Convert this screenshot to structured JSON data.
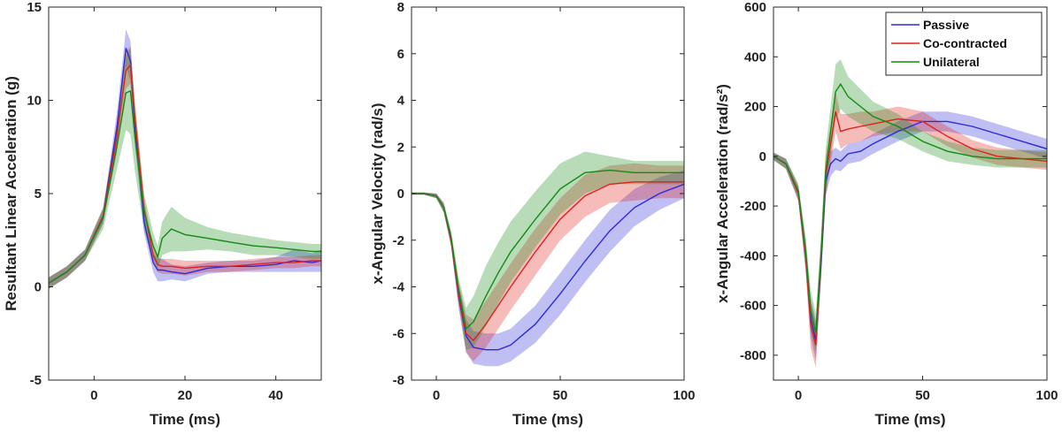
{
  "figure": {
    "legend": {
      "placement": "top-right of third panel",
      "entries": [
        {
          "label": "Passive",
          "color": "#2b2bd9"
        },
        {
          "label": "Co-contracted",
          "color": "#e0201c"
        },
        {
          "label": "Unilateral",
          "color": "#138a13"
        }
      ]
    }
  },
  "chart_data": [
    {
      "type": "line",
      "title": "",
      "xlabel": "Time (ms)",
      "ylabel": "Resultant Linear Acceleration (g)",
      "xlim": [
        -10,
        50
      ],
      "ylim": [
        -5,
        15
      ],
      "xticks": [
        0,
        20,
        40
      ],
      "yticks": [
        -5,
        0,
        5,
        10,
        15
      ],
      "grid": false,
      "series": [
        {
          "name": "Passive",
          "color": "#2b2bd9",
          "x": [
            -10,
            -6,
            -2,
            2,
            5,
            7,
            8,
            9,
            11,
            13,
            14,
            15,
            17,
            20,
            25,
            30,
            35,
            40,
            44,
            48,
            50
          ],
          "y": [
            0.2,
            0.8,
            1.7,
            3.8,
            8.5,
            12.8,
            12.1,
            8.5,
            3.5,
            1.3,
            0.9,
            0.9,
            0.8,
            0.7,
            1.0,
            1.1,
            1.1,
            1.2,
            1.4,
            1.3,
            1.4
          ],
          "band": [
            0.3,
            0.3,
            0.3,
            0.4,
            0.8,
            1.0,
            1.1,
            0.9,
            0.6,
            0.5,
            0.6,
            0.6,
            0.4,
            0.4,
            0.3,
            0.3,
            0.3,
            0.4,
            0.6,
            0.5,
            0.6
          ]
        },
        {
          "name": "Co-contracted",
          "color": "#e0201c",
          "x": [
            -10,
            -6,
            -2,
            2,
            5,
            7,
            8,
            9,
            11,
            13,
            14,
            15,
            17,
            20,
            25,
            30,
            35,
            40,
            44,
            48,
            50
          ],
          "y": [
            0.2,
            0.8,
            1.7,
            3.8,
            8.0,
            11.6,
            11.9,
            9.0,
            4.2,
            1.7,
            1.2,
            1.1,
            1.1,
            1.0,
            1.1,
            1.1,
            1.2,
            1.3,
            1.3,
            1.4,
            1.4
          ],
          "band": [
            0.3,
            0.3,
            0.3,
            0.4,
            0.8,
            1.0,
            1.0,
            0.9,
            0.6,
            0.4,
            0.4,
            0.4,
            0.4,
            0.4,
            0.3,
            0.3,
            0.3,
            0.3,
            0.3,
            0.3,
            0.3
          ]
        },
        {
          "name": "Unilateral",
          "color": "#138a13",
          "x": [
            -10,
            -6,
            -2,
            2,
            5,
            7,
            8,
            9,
            11,
            13,
            14,
            15,
            17,
            20,
            25,
            30,
            35,
            40,
            44,
            48,
            50
          ],
          "y": [
            0.2,
            0.8,
            1.7,
            3.7,
            7.5,
            10.4,
            10.5,
            8.0,
            4.0,
            2.2,
            1.6,
            2.6,
            3.1,
            2.8,
            2.6,
            2.4,
            2.2,
            2.1,
            2.0,
            1.9,
            1.9
          ],
          "band": [
            0.3,
            0.3,
            0.3,
            0.6,
            1.2,
            2.0,
            2.3,
            1.8,
            1.0,
            0.7,
            0.6,
            0.9,
            1.2,
            0.9,
            0.6,
            0.5,
            0.5,
            0.4,
            0.4,
            0.4,
            0.4
          ]
        }
      ]
    },
    {
      "type": "line",
      "title": "",
      "xlabel": "Time (ms)",
      "ylabel": "x-Angular Velocity (rad/s)",
      "xlim": [
        -10,
        100
      ],
      "ylim": [
        -8,
        8
      ],
      "xticks": [
        0,
        50,
        100
      ],
      "yticks": [
        -8,
        -6,
        -4,
        -2,
        0,
        2,
        4,
        6,
        8
      ],
      "grid": false,
      "series": [
        {
          "name": "Passive",
          "color": "#2b2bd9",
          "x": [
            -10,
            -5,
            0,
            3,
            6,
            9,
            12,
            15,
            20,
            25,
            30,
            40,
            50,
            60,
            70,
            80,
            90,
            100
          ],
          "y": [
            0,
            0,
            -0.1,
            -0.6,
            -2.0,
            -4.4,
            -6.1,
            -6.6,
            -6.7,
            -6.7,
            -6.5,
            -5.6,
            -4.3,
            -2.9,
            -1.6,
            -0.6,
            0,
            0.4
          ],
          "band": [
            0.05,
            0.05,
            0.1,
            0.2,
            0.3,
            0.5,
            0.7,
            0.7,
            0.7,
            0.7,
            0.7,
            0.8,
            0.9,
            0.9,
            0.9,
            0.8,
            0.7,
            0.6
          ]
        },
        {
          "name": "Co-contracted",
          "color": "#e0201c",
          "x": [
            -10,
            -5,
            0,
            3,
            6,
            9,
            12,
            15,
            20,
            25,
            30,
            40,
            50,
            60,
            70,
            80,
            90,
            100
          ],
          "y": [
            0,
            0,
            -0.1,
            -0.6,
            -2.0,
            -4.3,
            -6.0,
            -6.3,
            -5.6,
            -4.8,
            -4.0,
            -2.5,
            -1.1,
            -0.1,
            0.4,
            0.5,
            0.5,
            0.5
          ],
          "band": [
            0.05,
            0.05,
            0.1,
            0.2,
            0.3,
            0.5,
            0.8,
            0.9,
            1.0,
            1.0,
            1.0,
            1.0,
            0.9,
            0.9,
            0.8,
            0.8,
            0.7,
            0.7
          ]
        },
        {
          "name": "Unilateral",
          "color": "#138a13",
          "x": [
            -10,
            -5,
            0,
            3,
            6,
            9,
            12,
            15,
            20,
            25,
            30,
            40,
            50,
            60,
            70,
            80,
            90,
            100
          ],
          "y": [
            0,
            0,
            -0.1,
            -0.6,
            -1.9,
            -4.1,
            -5.8,
            -5.5,
            -4.4,
            -3.4,
            -2.5,
            -1.1,
            0.2,
            0.9,
            1.0,
            0.9,
            0.9,
            0.9
          ],
          "band": [
            0.05,
            0.05,
            0.1,
            0.2,
            0.3,
            0.5,
            0.9,
            1.1,
            1.3,
            1.3,
            1.3,
            1.2,
            1.1,
            0.9,
            0.6,
            0.5,
            0.5,
            0.5
          ]
        }
      ]
    },
    {
      "type": "line",
      "title": "",
      "xlabel": "Time (ms)",
      "ylabel": "x-Angular Acceleration (rad/s²)",
      "xlim": [
        -10,
        100
      ],
      "ylim": [
        -900,
        600
      ],
      "xticks": [
        0,
        50,
        100
      ],
      "yticks": [
        -800,
        -600,
        -400,
        -200,
        0,
        200,
        400,
        600
      ],
      "grid": false,
      "series": [
        {
          "name": "Passive",
          "color": "#2b2bd9",
          "x": [
            -10,
            -5,
            0,
            3,
            5,
            7,
            9,
            11,
            13,
            15,
            17,
            20,
            25,
            30,
            40,
            50,
            60,
            70,
            80,
            90,
            100
          ],
          "y": [
            0,
            -30,
            -150,
            -400,
            -650,
            -740,
            -450,
            -100,
            -30,
            -10,
            -20,
            10,
            20,
            50,
            100,
            140,
            140,
            120,
            90,
            60,
            30
          ],
          "band": [
            15,
            20,
            30,
            60,
            80,
            80,
            70,
            60,
            50,
            45,
            40,
            40,
            40,
            40,
            40,
            40,
            40,
            40,
            40,
            40,
            40
          ]
        },
        {
          "name": "Co-contracted",
          "color": "#e0201c",
          "x": [
            -10,
            -5,
            0,
            3,
            5,
            7,
            9,
            11,
            13,
            15,
            17,
            20,
            25,
            30,
            40,
            50,
            60,
            70,
            80,
            90,
            100
          ],
          "y": [
            0,
            -30,
            -150,
            -410,
            -680,
            -760,
            -420,
            -80,
            50,
            180,
            100,
            110,
            120,
            130,
            150,
            140,
            80,
            30,
            0,
            -10,
            -20
          ],
          "band": [
            15,
            20,
            30,
            60,
            90,
            90,
            80,
            80,
            80,
            80,
            70,
            60,
            60,
            50,
            50,
            40,
            40,
            35,
            35,
            35,
            35
          ]
        },
        {
          "name": "Unilateral",
          "color": "#138a13",
          "x": [
            -10,
            -5,
            0,
            3,
            5,
            7,
            9,
            11,
            13,
            15,
            17,
            20,
            25,
            30,
            40,
            50,
            60,
            70,
            80,
            90,
            100
          ],
          "y": [
            0,
            -30,
            -140,
            -390,
            -620,
            -710,
            -420,
            -60,
            100,
            260,
            290,
            240,
            200,
            160,
            120,
            60,
            20,
            0,
            -10,
            -10,
            -10
          ],
          "band": [
            15,
            20,
            30,
            60,
            80,
            80,
            80,
            90,
            100,
            110,
            100,
            80,
            70,
            60,
            50,
            40,
            40,
            35,
            35,
            35,
            35
          ]
        }
      ]
    }
  ]
}
